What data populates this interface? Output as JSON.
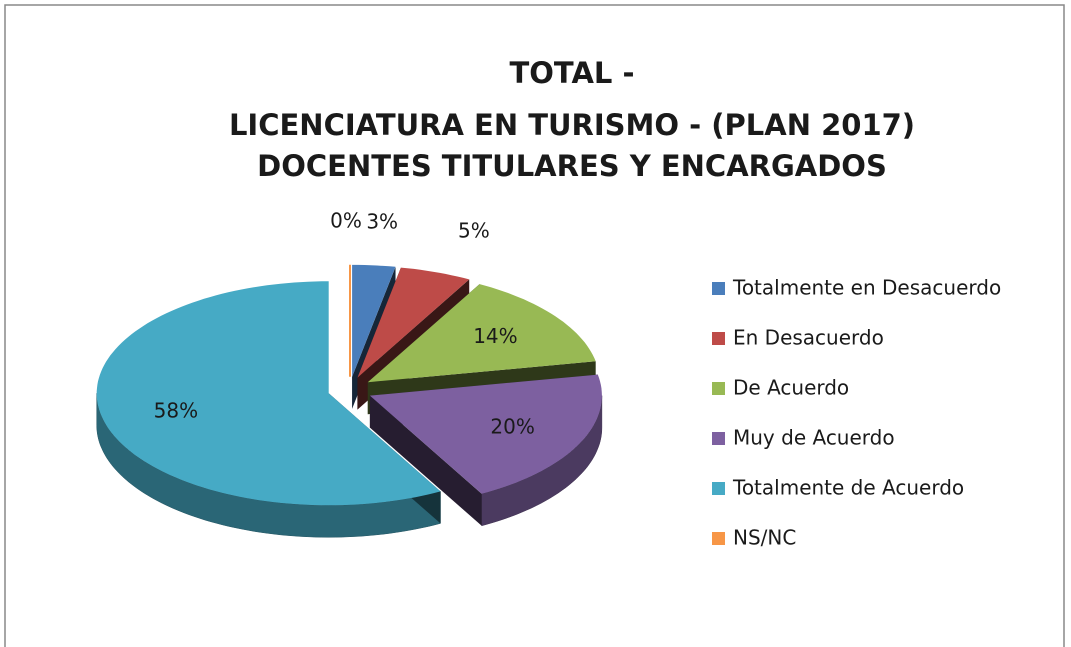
{
  "chart_data": {
    "type": "pie",
    "title": [
      "TOTAL -",
      "LICENCIATURA EN TURISMO - (PLAN 2017)",
      "DOCENTES TITULARES Y ENCARGADOS"
    ],
    "categories": [
      "Totalmente en Desacuerdo",
      "En Desacuerdo",
      "De Acuerdo",
      "Muy de Acuerdo",
      "Totalmente de Acuerdo",
      "NS/NC"
    ],
    "values": [
      3,
      5,
      14,
      20,
      58,
      0
    ],
    "value_labels": [
      "3%",
      "5%",
      "14%",
      "20%",
      "58%",
      "0%"
    ],
    "colors": [
      "#4a7ebb",
      "#be4b48",
      "#98b954",
      "#7d60a0",
      "#46aac5",
      "#f79646"
    ],
    "legend": "right"
  }
}
